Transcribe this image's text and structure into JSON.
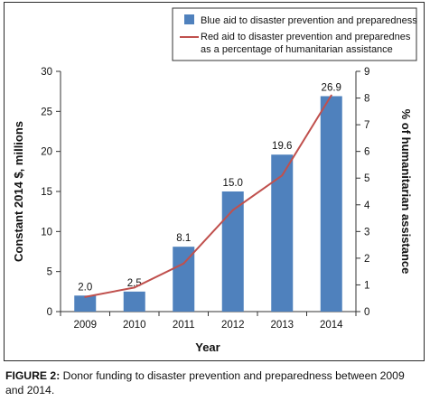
{
  "chart_data": {
    "type": "bar+line",
    "categories": [
      "2009",
      "2010",
      "2011",
      "2012",
      "2013",
      "2014"
    ],
    "bar_series": {
      "name": "Blue aid to disaster prevention and preparedness",
      "values": [
        2.0,
        2.5,
        8.1,
        15.0,
        19.6,
        26.9
      ],
      "labels": [
        "2.0",
        "2.5",
        "8.1",
        "15.0",
        "19.6",
        "26.9"
      ],
      "color": "#4f81bd"
    },
    "line_series": {
      "name_line1": "Red aid to disaster prevention and preparednes",
      "name_line2": "as a percentage of humanitarian assistance",
      "values": [
        0.55,
        0.9,
        1.8,
        3.8,
        5.1,
        8.1
      ],
      "color": "#c0504d"
    },
    "xlabel": "Year",
    "ylabel_left": "Constant 2014 $, millions",
    "ylabel_right": "% of humanitarian assistance",
    "ylim_left": [
      0,
      30
    ],
    "ylim_right": [
      0,
      9
    ],
    "yticks_left": [
      "0",
      "5",
      "10",
      "15",
      "20",
      "25",
      "30"
    ],
    "yticks_right": [
      "0",
      "1",
      "2",
      "3",
      "4",
      "5",
      "6",
      "7",
      "8",
      "9"
    ],
    "grid": false,
    "legend_position": "top-right"
  },
  "caption": {
    "label": "FIGURE 2:",
    "text": " Donor funding to disaster prevention and preparedness between 2009 and 2014."
  }
}
